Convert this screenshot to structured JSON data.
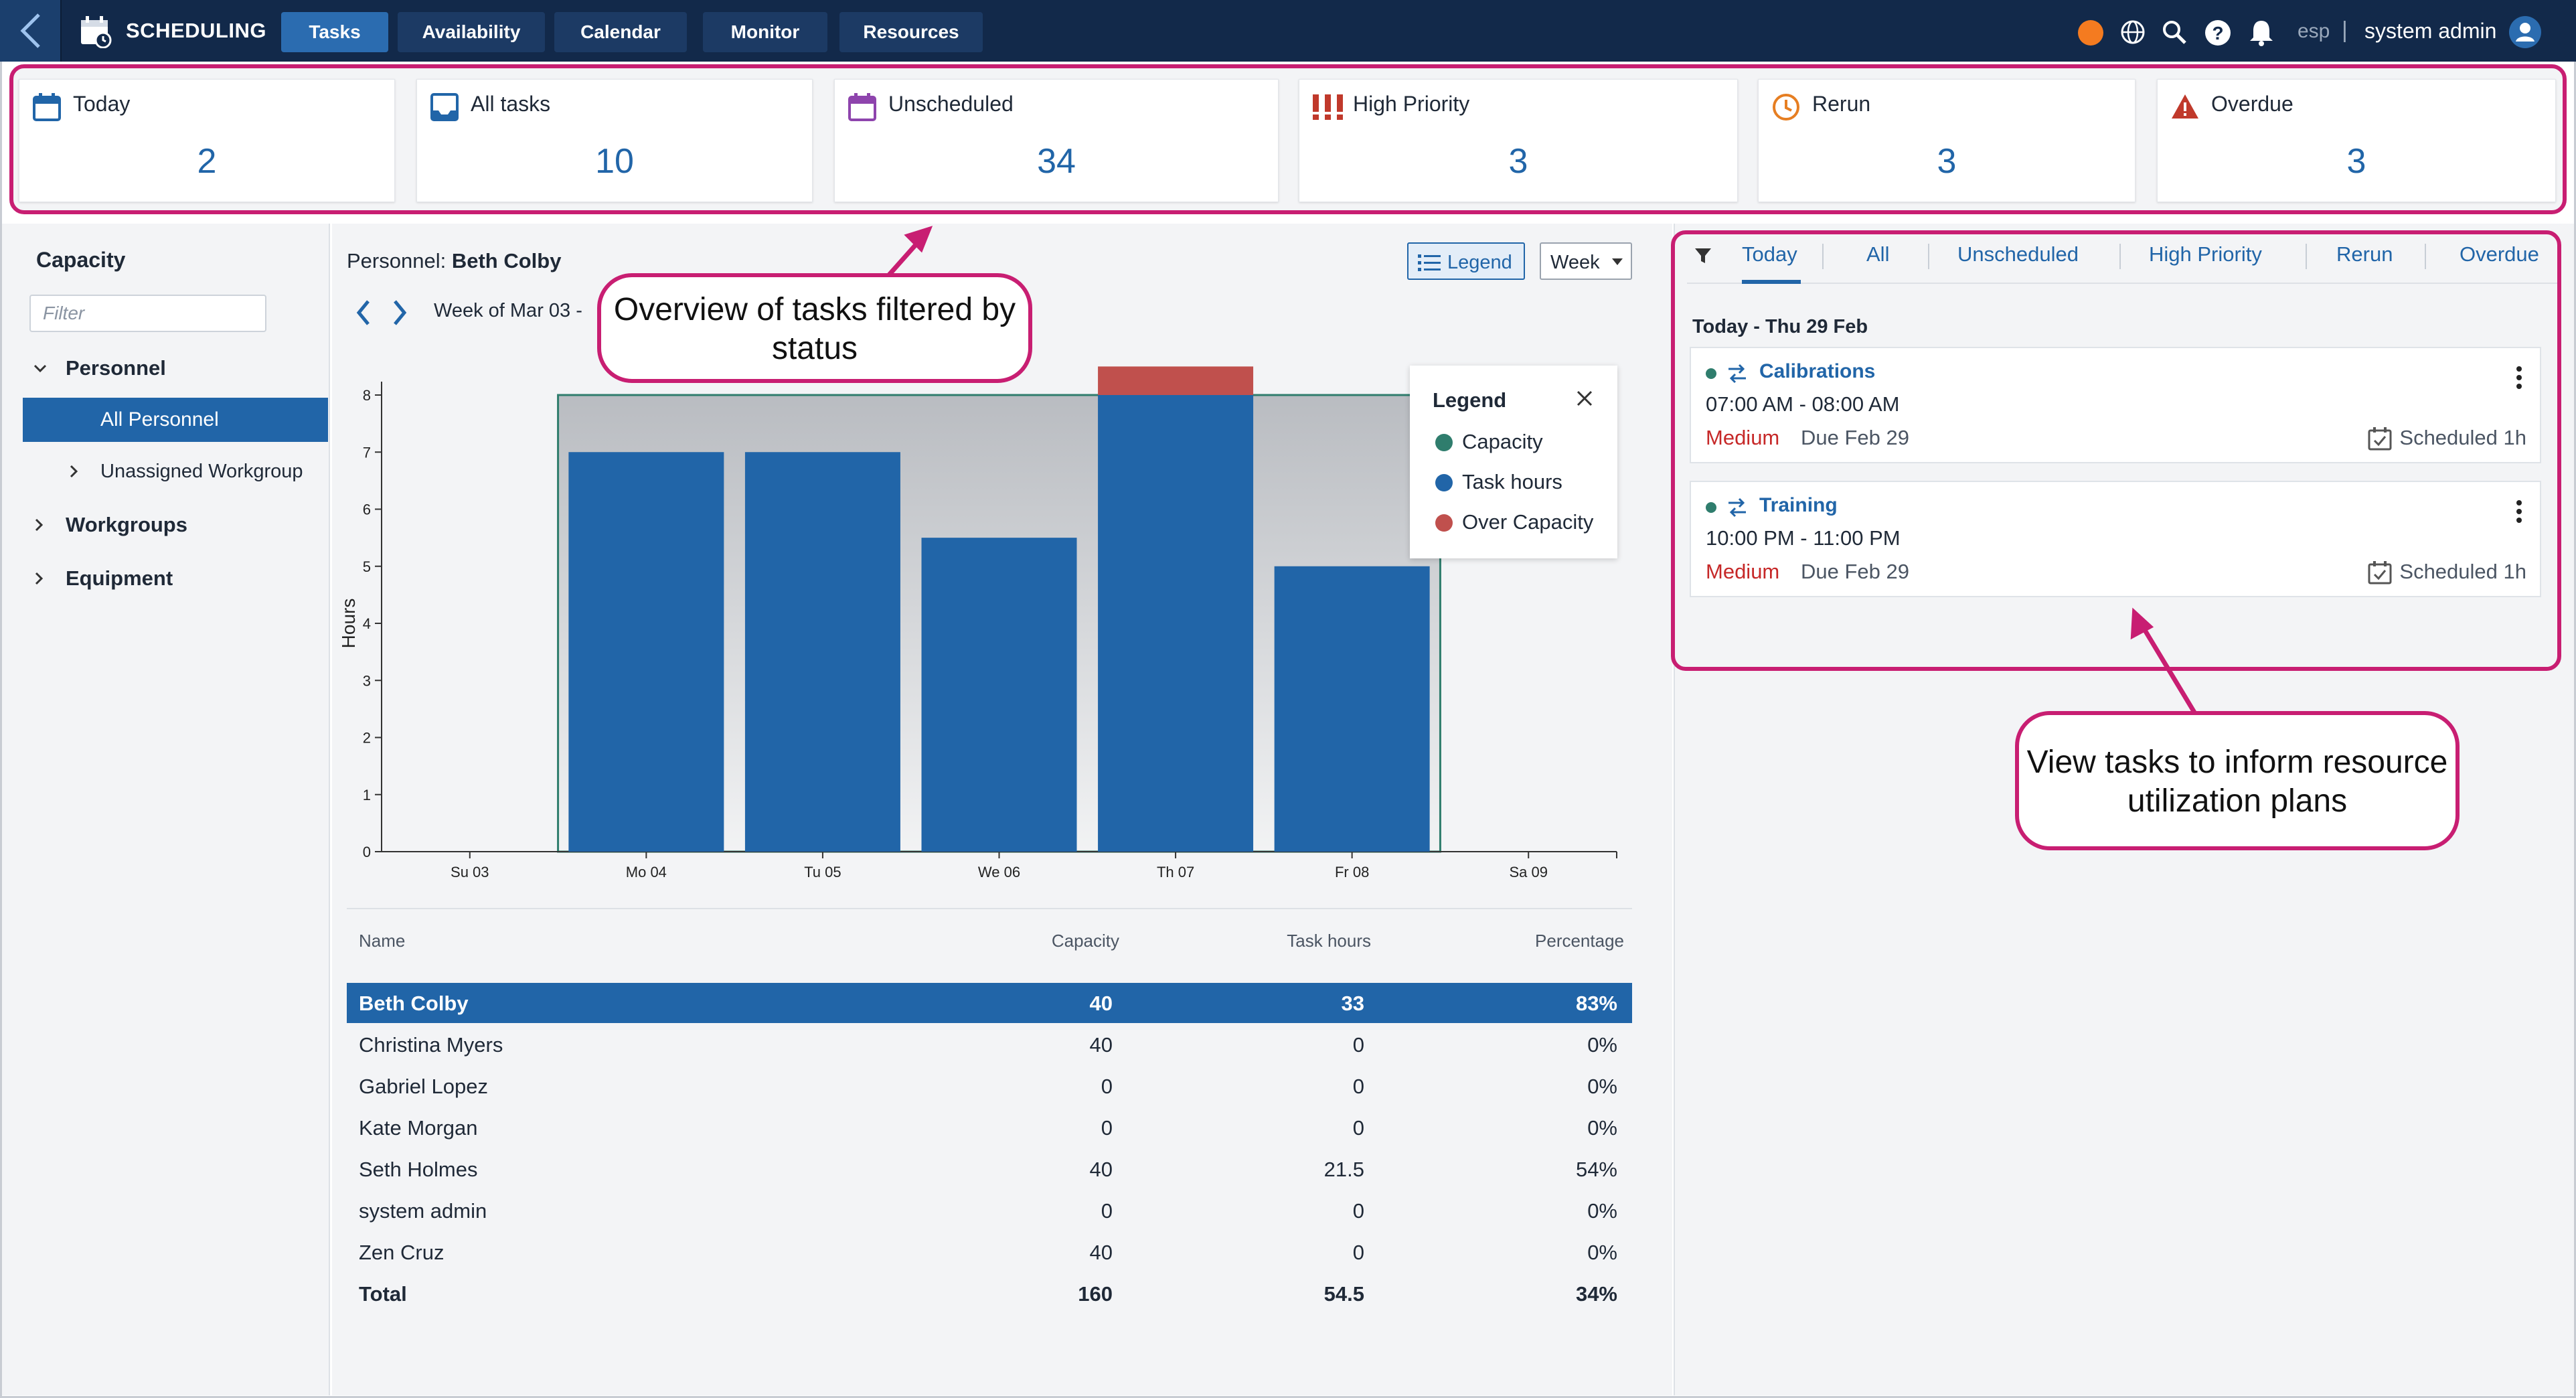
{
  "app": {
    "title": "SCHEDULING"
  },
  "nav": {
    "tabs": [
      "Tasks",
      "Availability",
      "Calendar",
      "Monitor",
      "Resources"
    ],
    "active": "Tasks"
  },
  "user": {
    "lang": "esp",
    "name": "system admin"
  },
  "cards": [
    {
      "label": "Today",
      "value": "2",
      "icon": "calendar-icon"
    },
    {
      "label": "All tasks",
      "value": "10",
      "icon": "inbox-icon"
    },
    {
      "label": "Unscheduled",
      "value": "34",
      "icon": "calendar-unscheduled-icon"
    },
    {
      "label": "High Priority",
      "value": "3",
      "icon": "high-priority-icon"
    },
    {
      "label": "Rerun",
      "value": "3",
      "icon": "rerun-clock-icon"
    },
    {
      "label": "Overdue",
      "value": "3",
      "icon": "warning-icon"
    }
  ],
  "sidebar": {
    "title": "Capacity",
    "filter_placeholder": "Filter",
    "personnel": "Personnel",
    "all_personnel": "All Personnel",
    "unassigned": "Unassigned Workgroup",
    "workgroups": "Workgroups",
    "equipment": "Equipment"
  },
  "center": {
    "title_prefix": "Personnel:",
    "person": "Beth Colby",
    "legend_btn": "Legend",
    "range": "Week",
    "week_label": "Week of Mar 03 - "
  },
  "legend": {
    "title": "Legend",
    "items": [
      {
        "label": "Capacity",
        "color": "#2f7d6d"
      },
      {
        "label": "Task hours",
        "color": "#2165a8"
      },
      {
        "label": "Over Capacity",
        "color": "#c0504d"
      }
    ]
  },
  "chart_data": {
    "type": "bar",
    "categories": [
      "Su 03",
      "Mo 04",
      "Tu 05",
      "We 06",
      "Th 07",
      "Fr 08",
      "Sa 09"
    ],
    "series": [
      {
        "name": "Capacity",
        "values": [
          0,
          8,
          8,
          8,
          8,
          8,
          0
        ]
      },
      {
        "name": "Task hours",
        "values": [
          0,
          7,
          7,
          5.5,
          8,
          5,
          0
        ]
      },
      {
        "name": "Over Capacity",
        "values": [
          0,
          0,
          0,
          0,
          0.5,
          0,
          0
        ]
      }
    ],
    "ylabel": "Hours",
    "ylim": [
      0,
      8
    ],
    "yticks": [
      "0",
      "1",
      "2",
      "3",
      "4",
      "5",
      "6",
      "7",
      "8"
    ]
  },
  "table": {
    "headers": [
      "Name",
      "Capacity",
      "Task hours",
      "Percentage"
    ],
    "rows": [
      [
        "Beth Colby",
        "40",
        "33",
        "83%"
      ],
      [
        "Christina Myers",
        "40",
        "0",
        "0%"
      ],
      [
        "Gabriel Lopez",
        "0",
        "0",
        "0%"
      ],
      [
        "Kate Morgan",
        "0",
        "0",
        "0%"
      ],
      [
        "Seth Holmes",
        "40",
        "21.5",
        "54%"
      ],
      [
        "system admin",
        "0",
        "0",
        "0%"
      ],
      [
        "Zen Cruz",
        "40",
        "0",
        "0%"
      ]
    ],
    "total": [
      "Total",
      "160",
      "54.5",
      "34%"
    ]
  },
  "right": {
    "tabs": [
      "Today",
      "All",
      "Unscheduled",
      "High Priority",
      "Rerun",
      "Overdue"
    ],
    "active": "Today",
    "day_label": "Today - Thu 29 Feb",
    "tasks": [
      {
        "name": "Calibrations",
        "time": "07:00 AM - 08:00 AM",
        "priority": "Medium",
        "due": "Due Feb 29",
        "scheduled": "Scheduled 1h"
      },
      {
        "name": "Training",
        "time": "10:00 PM - 11:00 PM",
        "priority": "Medium",
        "due": "Due Feb 29",
        "scheduled": "Scheduled 1h"
      }
    ]
  },
  "callouts": {
    "top": "Overview of tasks filtered by status",
    "right": "View tasks to inform resource utilization plans"
  },
  "colors": {
    "accent": "#2165a8",
    "callout": "#c81e72",
    "nav": "#12294a",
    "over": "#c0504d",
    "capacity": "#2f7d6d"
  }
}
